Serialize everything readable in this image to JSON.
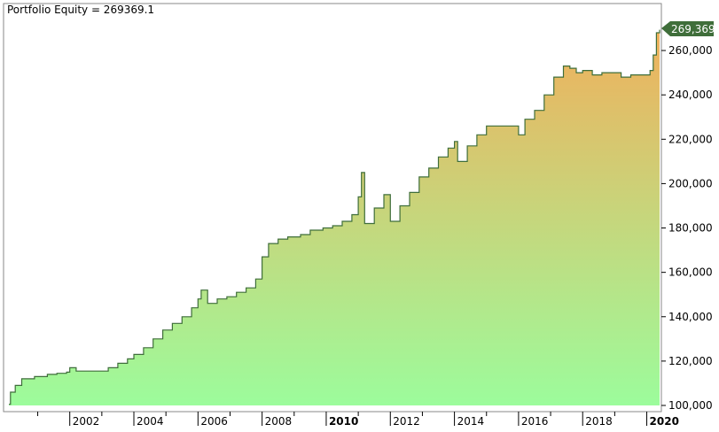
{
  "title": "Portfolio Equity = 269369.1",
  "last_value_label": "269,369",
  "colors": {
    "line": "#3f6e3a",
    "fill_top": "#f0b05c",
    "fill_bottom": "#9cfc9c",
    "last_label_bg": "#3f6e3a",
    "frame": "#8a8a8a"
  },
  "chart_data": {
    "type": "area",
    "title": "Portfolio Equity = 269369.1",
    "xlabel": "",
    "ylabel": "",
    "xlim": [
      2000.1,
      2020.4
    ],
    "ylim": [
      100000,
      270000
    ],
    "grid": false,
    "y_ticks": [
      {
        "value": 100000,
        "label": "100,000"
      },
      {
        "value": 120000,
        "label": "120,000"
      },
      {
        "value": 140000,
        "label": "140,000"
      },
      {
        "value": 160000,
        "label": "160,000"
      },
      {
        "value": 180000,
        "label": "180,000"
      },
      {
        "value": 200000,
        "label": "200,000"
      },
      {
        "value": 220000,
        "label": "220,000"
      },
      {
        "value": 240000,
        "label": "240,000"
      },
      {
        "value": 260000,
        "label": "260,000"
      }
    ],
    "x_ticks": [
      {
        "value": 2002,
        "label": "2002",
        "bold": false
      },
      {
        "value": 2004,
        "label": "2004",
        "bold": false
      },
      {
        "value": 2006,
        "label": "2006",
        "bold": false
      },
      {
        "value": 2008,
        "label": "2008",
        "bold": false
      },
      {
        "value": 2010,
        "label": "2010",
        "bold": true
      },
      {
        "value": 2012,
        "label": "2012",
        "bold": false
      },
      {
        "value": 2014,
        "label": "2014",
        "bold": false
      },
      {
        "value": 2016,
        "label": "2016",
        "bold": false
      },
      {
        "value": 2018,
        "label": "2018",
        "bold": false
      },
      {
        "value": 2020,
        "label": "2020",
        "bold": true
      }
    ],
    "series": [
      {
        "x": [
          2000.1,
          2000.15,
          2000.3,
          2000.5,
          2000.9,
          2001.3,
          2001.6,
          2001.9,
          2002.0,
          2002.2,
          2002.6,
          2003.0,
          2003.2,
          2003.5,
          2003.8,
          2004.0,
          2004.3,
          2004.6,
          2004.9,
          2005.2,
          2005.5,
          2005.8,
          2006.0,
          2006.1,
          2006.3,
          2006.6,
          2006.9,
          2007.2,
          2007.5,
          2007.8,
          2008.0,
          2008.2,
          2008.5,
          2008.8,
          2009.2,
          2009.5,
          2009.9,
          2010.2,
          2010.5,
          2010.8,
          2011.0,
          2011.1,
          2011.2,
          2011.5,
          2011.8,
          2012.0,
          2012.3,
          2012.6,
          2012.9,
          2013.2,
          2013.5,
          2013.8,
          2014.0,
          2014.1,
          2014.4,
          2014.7,
          2015.0,
          2015.3,
          2015.6,
          2015.9,
          2016.0,
          2016.2,
          2016.5,
          2016.8,
          2017.1,
          2017.4,
          2017.6,
          2017.8,
          2018.0,
          2018.3,
          2018.6,
          2018.9,
          2019.2,
          2019.5,
          2019.8,
          2020.0,
          2020.1,
          2020.2,
          2020.3,
          2020.4
        ],
        "y": [
          100500,
          106000,
          109000,
          112000,
          113000,
          114000,
          114500,
          115000,
          117000,
          115500,
          115500,
          115500,
          117000,
          119000,
          121000,
          123000,
          126000,
          130000,
          134000,
          137000,
          140000,
          144000,
          148000,
          152000,
          146000,
          148000,
          149000,
          151000,
          153000,
          157000,
          167000,
          173000,
          175000,
          176000,
          177000,
          179000,
          180000,
          181000,
          183000,
          186000,
          194000,
          205000,
          182000,
          189000,
          195000,
          183000,
          190000,
          196000,
          203000,
          207000,
          212000,
          216000,
          219000,
          210000,
          217000,
          222000,
          226000,
          226000,
          226000,
          226000,
          222000,
          229000,
          233000,
          240000,
          248000,
          253000,
          252000,
          250000,
          251000,
          249000,
          250000,
          250000,
          248000,
          249000,
          249000,
          249000,
          251000,
          258000,
          268000,
          269369
        ]
      }
    ]
  }
}
